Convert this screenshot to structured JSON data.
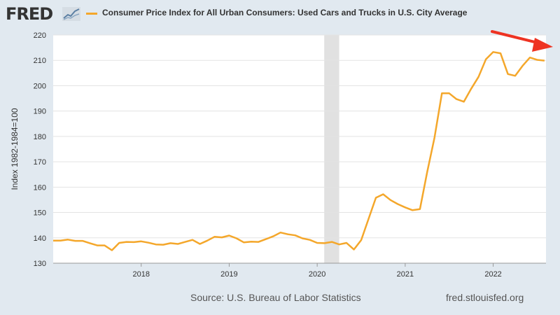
{
  "header": {
    "logo_text": "FRED",
    "logo_icon": "line-chart-icon"
  },
  "footer": {
    "source": "Source: U.S. Bureau of Labor Statistics",
    "link": "fred.stlouisfed.org"
  },
  "colors": {
    "series": "#f4a72b",
    "recession": "#e1e1e1",
    "arrow": "#ee3322",
    "background": "#e1e9f0"
  },
  "annotation": {
    "arrow_icon": "red-arrow-icon"
  },
  "chart_data": {
    "type": "line",
    "ylabel": "Index 1982-1984=100",
    "ylim": [
      130,
      220
    ],
    "yticks": [
      130,
      140,
      150,
      160,
      170,
      180,
      190,
      200,
      210,
      220
    ],
    "xlim": [
      2017.0,
      2022.6
    ],
    "xticks": [
      2018,
      2019,
      2020,
      2021,
      2022
    ],
    "grid": true,
    "recession": [
      2020.08,
      2020.25
    ],
    "series": [
      {
        "name": "Consumer Price Index for All Urban Consumers: Used Cars and Trucks in U.S. City Average",
        "x": [
          2017.0,
          2017.083,
          2017.167,
          2017.25,
          2017.333,
          2017.417,
          2017.5,
          2017.583,
          2017.667,
          2017.75,
          2017.833,
          2017.917,
          2018.0,
          2018.083,
          2018.167,
          2018.25,
          2018.333,
          2018.417,
          2018.5,
          2018.583,
          2018.667,
          2018.75,
          2018.833,
          2018.917,
          2019.0,
          2019.083,
          2019.167,
          2019.25,
          2019.333,
          2019.417,
          2019.5,
          2019.583,
          2019.667,
          2019.75,
          2019.833,
          2019.917,
          2020.0,
          2020.083,
          2020.167,
          2020.25,
          2020.333,
          2020.417,
          2020.5,
          2020.583,
          2020.667,
          2020.75,
          2020.833,
          2020.917,
          2021.0,
          2021.083,
          2021.167,
          2021.25,
          2021.333,
          2021.417,
          2021.5,
          2021.583,
          2021.667,
          2021.75,
          2021.833,
          2021.917,
          2022.0,
          2022.083,
          2022.167,
          2022.25,
          2022.333,
          2022.417,
          2022.5,
          2022.583
        ],
        "y": [
          138.9,
          138.9,
          139.3,
          138.8,
          138.8,
          137.9,
          137.0,
          137.0,
          135.1,
          138.0,
          138.4,
          138.3,
          138.6,
          138.1,
          137.4,
          137.3,
          137.9,
          137.6,
          138.4,
          139.2,
          137.6,
          138.9,
          140.4,
          140.2,
          140.9,
          139.8,
          138.2,
          138.5,
          138.4,
          139.5,
          140.6,
          142.1,
          141.4,
          141.0,
          139.8,
          139.2,
          138.0,
          137.9,
          138.4,
          137.4,
          138.0,
          135.4,
          139.1,
          147.4,
          155.8,
          157.2,
          154.9,
          153.3,
          152.0,
          150.9,
          151.3,
          166.0,
          179.5,
          197.0,
          197.0,
          194.7,
          193.7,
          198.8,
          203.5,
          210.4,
          213.3,
          212.8,
          204.6,
          203.9,
          207.8,
          211.1,
          210.2,
          209.9
        ]
      }
    ]
  }
}
